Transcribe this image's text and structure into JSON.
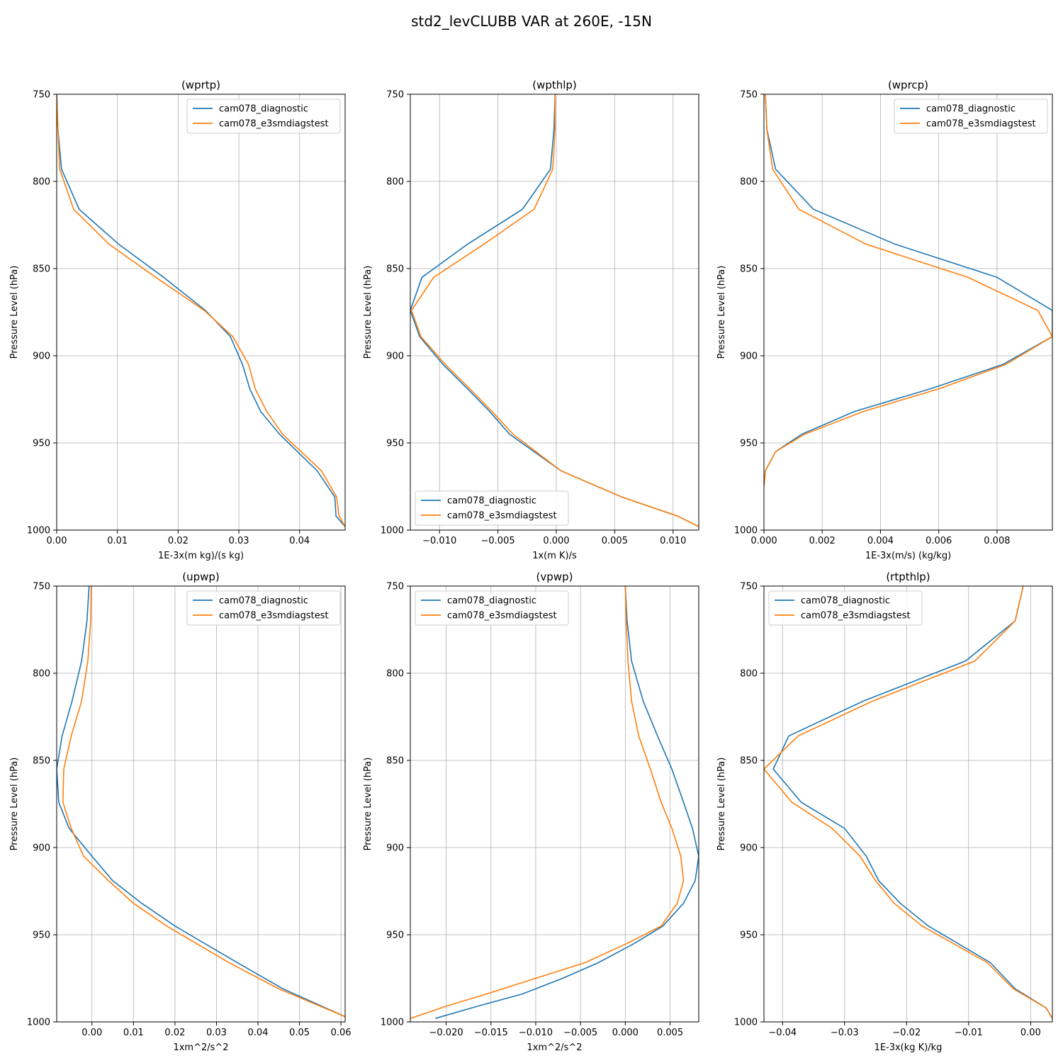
{
  "figure_title": "std2_levCLUBB VAR at 260E, -15N",
  "chart_data": [
    {
      "type": "line",
      "title": "(wprtp)",
      "xlabel": "1E-3x(m kg)/(s kg)",
      "ylabel": "Pressure Level (hPa)",
      "xlim": [
        0.0,
        0.0475
      ],
      "ylim": [
        1000,
        750
      ],
      "xticks": [
        0.0,
        0.01,
        0.02,
        0.03,
        0.04
      ],
      "xtick_labels": [
        "0.00",
        "0.01",
        "0.02",
        "0.03",
        "0.04"
      ],
      "yticks": [
        750,
        800,
        850,
        900,
        950,
        1000
      ],
      "ytick_labels": [
        "750",
        "800",
        "850",
        "900",
        "950",
        "1000"
      ],
      "legend": "upper right",
      "grid": true,
      "y": [
        750,
        770,
        793,
        816,
        836,
        855,
        874,
        889,
        905,
        919,
        932,
        945,
        966,
        981,
        992,
        998
      ],
      "series": [
        {
          "name": "cam078_diagnostic",
          "color": "#1f77b4",
          "values": [
            0.0,
            0.0002,
            0.0008,
            0.0037,
            0.0102,
            0.0176,
            0.0245,
            0.0286,
            0.0306,
            0.0318,
            0.0336,
            0.0367,
            0.0429,
            0.0458,
            0.046,
            0.0475
          ]
        },
        {
          "name": "cam078_e3smdiagstest",
          "color": "#ff7f0e",
          "values": [
            0.0,
            0.0002,
            0.0005,
            0.0028,
            0.0086,
            0.0163,
            0.0243,
            0.029,
            0.0316,
            0.0327,
            0.0346,
            0.0372,
            0.0436,
            0.0461,
            0.0465,
            0.0475
          ]
        }
      ]
    },
    {
      "type": "line",
      "title": "(wpthlp)",
      "xlabel": "1x(m K)/s",
      "ylabel": "Pressure Level (hPa)",
      "xlim": [
        -0.0125,
        0.0122
      ],
      "ylim": [
        1000,
        750
      ],
      "xticks": [
        -0.01,
        -0.005,
        0.0,
        0.005,
        0.01
      ],
      "xtick_labels": [
        "−0.010",
        "−0.005",
        "0.000",
        "0.005",
        "0.010"
      ],
      "yticks": [
        750,
        800,
        850,
        900,
        950,
        1000
      ],
      "ytick_labels": [
        "750",
        "800",
        "850",
        "900",
        "950",
        "1000"
      ],
      "legend": "lower left",
      "grid": true,
      "y": [
        750,
        770,
        793,
        816,
        836,
        855,
        874,
        889,
        905,
        919,
        932,
        945,
        966,
        981,
        992,
        998
      ],
      "series": [
        {
          "name": "cam078_diagnostic",
          "color": "#1f77b4",
          "values": [
            -0.0001,
            -0.0002,
            -0.0005,
            -0.0029,
            -0.0076,
            -0.0115,
            -0.0125,
            -0.0117,
            -0.0097,
            -0.0076,
            -0.0057,
            -0.004,
            0.0004,
            0.0056,
            0.0104,
            0.0122
          ]
        },
        {
          "name": "cam078_e3smdiagstest",
          "color": "#ff7f0e",
          "values": [
            -0.0001,
            -0.0001,
            -0.0003,
            -0.0019,
            -0.0062,
            -0.0105,
            -0.0124,
            -0.0116,
            -0.0095,
            -0.0074,
            -0.0055,
            -0.0037,
            0.0004,
            0.0056,
            0.0104,
            0.0122
          ]
        }
      ]
    },
    {
      "type": "line",
      "title": "(wprcp)",
      "xlabel": "1E-3x(m/s) (kg/kg)",
      "ylabel": "Pressure Level (hPa)",
      "xlim": [
        0.0,
        0.0099
      ],
      "ylim": [
        1000,
        750
      ],
      "xticks": [
        0.0,
        0.002,
        0.004,
        0.006,
        0.008
      ],
      "xtick_labels": [
        "0.000",
        "0.002",
        "0.004",
        "0.006",
        "0.008"
      ],
      "yticks": [
        750,
        800,
        850,
        900,
        950,
        1000
      ],
      "ytick_labels": [
        "750",
        "800",
        "850",
        "900",
        "950",
        "1000"
      ],
      "legend": "upper right",
      "grid": true,
      "y": [
        750,
        770,
        793,
        816,
        836,
        855,
        874,
        889,
        905,
        919,
        932,
        945,
        955,
        966,
        975
      ],
      "series": [
        {
          "name": "cam078_diagnostic",
          "color": "#1f77b4",
          "values": [
            5e-05,
            0.0001,
            0.0004,
            0.0017,
            0.0045,
            0.008,
            0.0099,
            0.0099,
            0.0082,
            0.0057,
            0.0031,
            0.0013,
            0.0004,
            5e-05,
            0.0
          ]
        },
        {
          "name": "cam078_e3smdiagstest",
          "color": "#ff7f0e",
          "values": [
            5e-05,
            0.0001,
            0.0003,
            0.0012,
            0.0035,
            0.007,
            0.0094,
            0.0099,
            0.0083,
            0.006,
            0.0034,
            0.0014,
            0.0004,
            5e-05,
            0.0
          ]
        }
      ]
    },
    {
      "type": "line",
      "title": "(upwp)",
      "xlabel": "1xm^2/s^2",
      "ylabel": "Pressure Level (hPa)",
      "xlim": [
        -0.0085,
        0.061
      ],
      "ylim": [
        1000,
        750
      ],
      "xticks": [
        0.0,
        0.01,
        0.02,
        0.03,
        0.04,
        0.05,
        0.06
      ],
      "xtick_labels": [
        "0.00",
        "0.01",
        "0.02",
        "0.03",
        "0.04",
        "0.05",
        "0.06"
      ],
      "yticks": [
        750,
        800,
        850,
        900,
        950,
        1000
      ],
      "ytick_labels": [
        "750",
        "800",
        "850",
        "900",
        "950",
        "1000"
      ],
      "legend": "upper right",
      "grid": true,
      "y": [
        750,
        770,
        793,
        816,
        836,
        855,
        874,
        889,
        905,
        919,
        932,
        945,
        966,
        981,
        997
      ],
      "series": [
        {
          "name": "cam078_diagnostic",
          "color": "#1f77b4",
          "values": [
            -0.0007,
            -0.0012,
            -0.0025,
            -0.0048,
            -0.0072,
            -0.0085,
            -0.008,
            -0.0055,
            0.0,
            0.005,
            0.012,
            0.02,
            0.035,
            0.046,
            0.061
          ]
        },
        {
          "name": "cam078_e3smdiagstest",
          "color": "#ff7f0e",
          "values": [
            -0.0002,
            -0.0003,
            -0.001,
            -0.0025,
            -0.005,
            -0.0068,
            -0.007,
            -0.005,
            -0.002,
            0.004,
            0.01,
            0.018,
            0.033,
            0.045,
            0.061
          ]
        }
      ]
    },
    {
      "type": "line",
      "title": "(vpwp)",
      "xlabel": "1xm^2/s^2",
      "ylabel": "Pressure Level (hPa)",
      "xlim": [
        -0.024,
        0.0082
      ],
      "ylim": [
        1000,
        750
      ],
      "xticks": [
        -0.02,
        -0.015,
        -0.01,
        -0.005,
        0.0,
        0.005
      ],
      "xtick_labels": [
        "−0.020",
        "−0.015",
        "−0.010",
        "−0.005",
        "0.000",
        "0.005"
      ],
      "yticks": [
        750,
        800,
        850,
        900,
        950,
        1000
      ],
      "ytick_labels": [
        "750",
        "800",
        "850",
        "900",
        "950",
        "1000"
      ],
      "legend": "upper left",
      "grid": true,
      "y": [
        750,
        770,
        793,
        816,
        836,
        855,
        874,
        889,
        905,
        919,
        932,
        945,
        955,
        966,
        975,
        984,
        991,
        998
      ],
      "series": [
        {
          "name": "cam078_diagnostic",
          "color": "#1f77b4",
          "values": [
            0.0,
            0.0002,
            0.0007,
            0.002,
            0.0036,
            0.0052,
            0.0065,
            0.0075,
            0.0082,
            0.0078,
            0.0065,
            0.0042,
            0.001,
            -0.003,
            -0.007,
            -0.0115,
            -0.0165,
            -0.0212
          ]
        },
        {
          "name": "cam078_e3smdiagstest",
          "color": "#ff7f0e",
          "values": [
            0.0,
            0.0001,
            0.0003,
            0.0007,
            0.0015,
            0.0028,
            0.004,
            0.0052,
            0.0062,
            0.0065,
            0.0058,
            0.004,
            0.0002,
            -0.0045,
            -0.01,
            -0.0155,
            -0.02,
            -0.024
          ]
        }
      ]
    },
    {
      "type": "line",
      "title": "(rtpthlp)",
      "xlabel": "1E-3x(kg K)/kg",
      "ylabel": "Pressure Level (hPa)",
      "xlim": [
        -0.043,
        0.0035
      ],
      "ylim": [
        1000,
        750
      ],
      "xticks": [
        -0.04,
        -0.03,
        -0.02,
        -0.01,
        0.0
      ],
      "xtick_labels": [
        "−0.04",
        "−0.03",
        "−0.02",
        "−0.01",
        "0.00"
      ],
      "yticks": [
        750,
        800,
        850,
        900,
        950,
        1000
      ],
      "ytick_labels": [
        "750",
        "800",
        "850",
        "900",
        "950",
        "1000"
      ],
      "legend": "upper left",
      "grid": true,
      "y": [
        750,
        770,
        793,
        816,
        836,
        855,
        874,
        889,
        905,
        919,
        932,
        945,
        966,
        981,
        992,
        998
      ],
      "series": [
        {
          "name": "cam078_diagnostic",
          "color": "#1f77b4",
          "values": [
            -0.0012,
            -0.0025,
            -0.0105,
            -0.027,
            -0.039,
            -0.0415,
            -0.037,
            -0.03,
            -0.0265,
            -0.0245,
            -0.021,
            -0.0165,
            -0.0065,
            -0.0025,
            0.0025,
            0.0035
          ]
        },
        {
          "name": "cam078_e3smdiagstest",
          "color": "#ff7f0e",
          "values": [
            -0.0012,
            -0.0025,
            -0.009,
            -0.0255,
            -0.0375,
            -0.043,
            -0.0385,
            -0.032,
            -0.0275,
            -0.025,
            -0.022,
            -0.0175,
            -0.007,
            -0.0028,
            0.0025,
            0.0035
          ]
        }
      ]
    }
  ]
}
